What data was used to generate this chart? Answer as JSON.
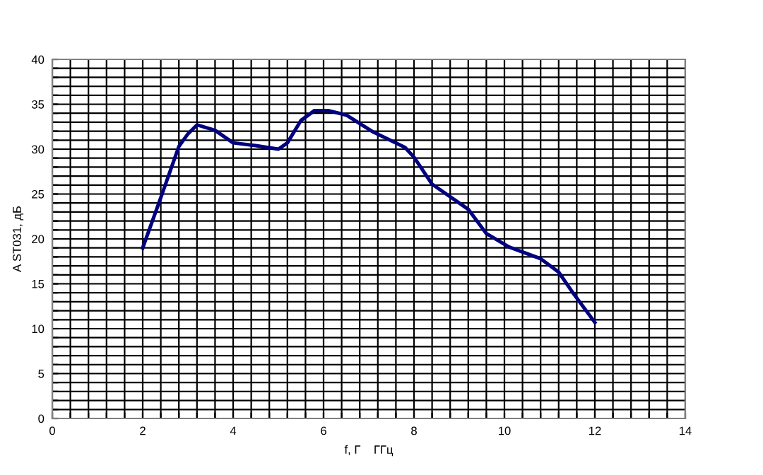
{
  "chart_data": {
    "type": "line",
    "xlabel": "f, Г    ГГц",
    "ylabel": "A ST031, дБ",
    "x": [
      2.0,
      2.4,
      2.8,
      3.0,
      3.2,
      3.6,
      4.0,
      4.5,
      5.0,
      5.2,
      5.5,
      5.8,
      6.1,
      6.5,
      7.1,
      7.8,
      8.0,
      8.4,
      9.2,
      9.6,
      10.1,
      10.8,
      11.2,
      11.5,
      12.0
    ],
    "series": [
      {
        "color": "#000080",
        "values": [
          19,
          24.6,
          30.3,
          31.7,
          32.7,
          32.1,
          30.7,
          30.4,
          30.0,
          30.7,
          33.2,
          34.3,
          34.3,
          33.8,
          31.9,
          30.2,
          29.1,
          26.1,
          23.3,
          20.6,
          19.1,
          17.8,
          16.3,
          14.1,
          10.7
        ]
      }
    ],
    "xlim": [
      0,
      14
    ],
    "ylim": [
      0,
      40
    ],
    "xticks": [
      0,
      {
        "value": 0.4,
        "label": null
      },
      {
        "value": 0.8,
        "label": null
      },
      {
        "value": 1.2,
        "label": null
      },
      {
        "value": 1.6,
        "label": null
      },
      2,
      {
        "value": 2.4,
        "label": null
      },
      {
        "value": 2.8,
        "label": null
      },
      {
        "value": 3.2,
        "label": null
      },
      {
        "value": 3.6,
        "label": null
      },
      4,
      {
        "value": 4.4,
        "label": null
      },
      {
        "value": 4.8,
        "label": null
      },
      {
        "value": 5.2,
        "label": null
      },
      {
        "value": 5.6,
        "label": null
      },
      6,
      {
        "value": 6.4,
        "label": null
      },
      {
        "value": 6.8,
        "label": null
      },
      {
        "value": 7.2,
        "label": null
      },
      {
        "value": 7.6,
        "label": null
      },
      8,
      {
        "value": 8.4,
        "label": null
      },
      {
        "value": 8.8,
        "label": null
      },
      {
        "value": 9.2,
        "label": null
      },
      {
        "value": 9.6,
        "label": null
      },
      10,
      {
        "value": 10.4,
        "label": null
      },
      {
        "value": 10.8,
        "label": null
      },
      {
        "value": 11.2,
        "label": null
      },
      {
        "value": 11.6,
        "label": null
      },
      12,
      {
        "value": 12.4,
        "label": null
      },
      {
        "value": 12.8,
        "label": null
      },
      {
        "value": 13.2,
        "label": null
      },
      {
        "value": 13.6,
        "label": null
      },
      14
    ],
    "yticks": [
      0,
      {
        "value": 1,
        "label": null
      },
      {
        "value": 2,
        "label": null
      },
      {
        "value": 3,
        "label": null
      },
      {
        "value": 4,
        "label": null
      },
      5,
      {
        "value": 6,
        "label": null
      },
      {
        "value": 7,
        "label": null
      },
      {
        "value": 8,
        "label": null
      },
      {
        "value": 9,
        "label": null
      },
      10,
      {
        "value": 11,
        "label": null
      },
      {
        "value": 12,
        "label": null
      },
      {
        "value": 13,
        "label": null
      },
      {
        "value": 14,
        "label": null
      },
      15,
      {
        "value": 16,
        "label": null
      },
      {
        "value": 17,
        "label": null
      },
      {
        "value": 18,
        "label": null
      },
      {
        "value": 19,
        "label": null
      },
      20,
      {
        "value": 21,
        "label": null
      },
      {
        "value": 22,
        "label": null
      },
      {
        "value": 23,
        "label": null
      },
      {
        "value": 24,
        "label": null
      },
      25,
      {
        "value": 26,
        "label": null
      },
      {
        "value": 27,
        "label": null
      },
      {
        "value": 28,
        "label": null
      },
      {
        "value": 29,
        "label": null
      },
      30,
      {
        "value": 31,
        "label": null
      },
      {
        "value": 32,
        "label": null
      },
      {
        "value": 33,
        "label": null
      },
      {
        "value": 34,
        "label": null
      },
      35,
      {
        "value": 36,
        "label": null
      },
      {
        "value": 37,
        "label": null
      },
      {
        "value": 38,
        "label": null
      },
      {
        "value": 39,
        "label": null
      },
      40
    ],
    "grid": true,
    "legend": false,
    "marker": "none",
    "line_style": "solid"
  }
}
